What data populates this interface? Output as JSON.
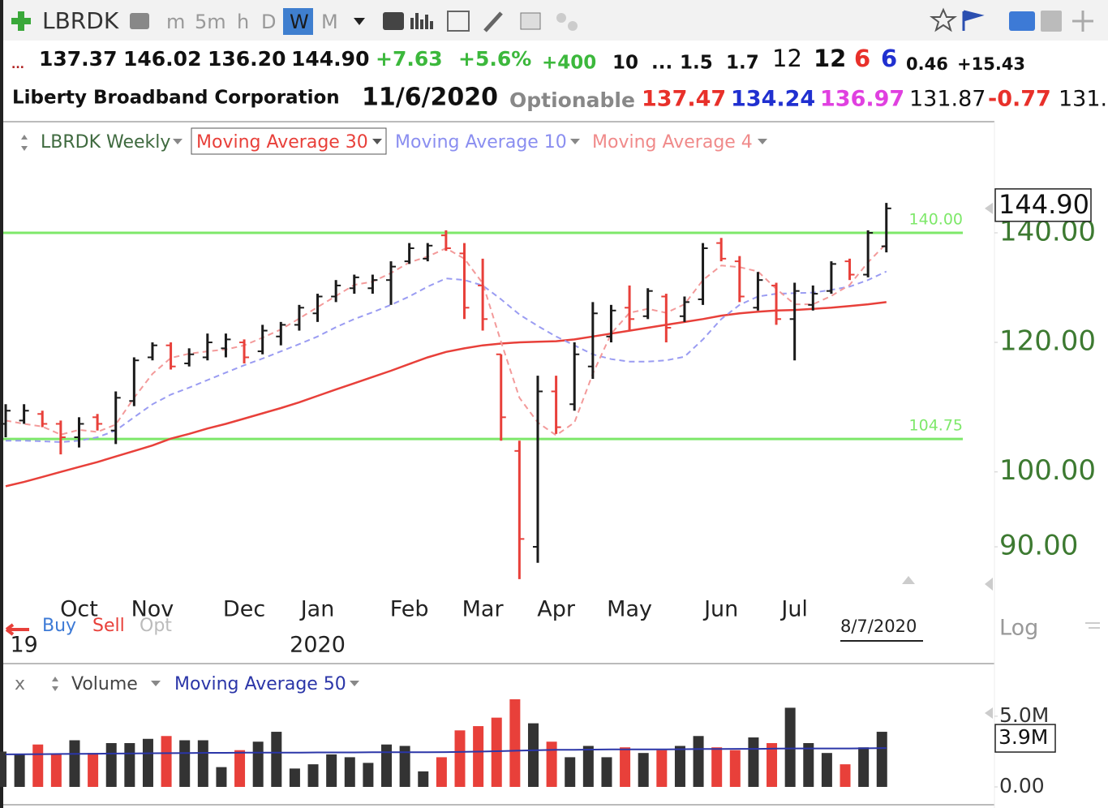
{
  "toolbar": {
    "symbol": "LBRDK",
    "intervals": [
      "m",
      "5m",
      "h",
      "D",
      "W",
      "M"
    ]
  },
  "quote": {
    "row1": [
      "...",
      "137.37",
      "146.02",
      "136.20",
      "144.90",
      "+7.63",
      "+5.6%",
      "+400",
      "10",
      "...",
      "1.5",
      "1.7",
      "12",
      "12",
      "6",
      "6",
      "0.46",
      "+15.43"
    ],
    "row2": [
      "Liberty Broadband Corporation",
      "11/6/2020",
      "Optionable",
      "137.47",
      "134.24",
      "136.97",
      "131.87",
      "-0.77",
      "131."
    ]
  },
  "trade_buttons": [
    "Buy",
    "Sell",
    "Opt"
  ],
  "scale_mode": "Log",
  "cursor_label": "8/7/2020",
  "close_button": "x",
  "chart_data": [
    {
      "type": "ohlc",
      "title": "LBRDK Weekly",
      "log_scale": true,
      "color_up": "#1a1a1a",
      "color_down": "#e8403a",
      "categories": [
        null,
        null,
        null,
        null,
        "Oct",
        null,
        null,
        null,
        "Nov",
        null,
        null,
        null,
        null,
        "Dec",
        null,
        null,
        null,
        "Jan",
        null,
        null,
        null,
        null,
        "Feb",
        null,
        null,
        null,
        "Mar",
        null,
        null,
        null,
        "Apr",
        null,
        null,
        null,
        "May",
        null,
        null,
        null,
        null,
        "Jun",
        null,
        null,
        null,
        "Jul",
        null,
        null,
        null,
        null,
        null
      ],
      "year_labels": [
        null,
        "19",
        null,
        null,
        null,
        null,
        null,
        null,
        null,
        null,
        null,
        null,
        null,
        null,
        null,
        null,
        null,
        "2020",
        null,
        null,
        null,
        null,
        null,
        null,
        null,
        null,
        null,
        null,
        null,
        null,
        null,
        null,
        null,
        null,
        null,
        null,
        null,
        null,
        null,
        null,
        null,
        null,
        null,
        null,
        null,
        null,
        null,
        null,
        null
      ],
      "open": [
        107,
        107.5,
        108.5,
        107,
        105,
        108,
        106,
        110.5,
        117.5,
        119.5,
        116.5,
        117.5,
        119,
        120,
        118.5,
        121,
        123,
        125,
        128,
        129.5,
        129.5,
        131,
        134.5,
        135,
        139.5,
        136,
        130,
        118,
        103,
        90,
        112,
        110,
        116,
        121,
        126,
        124.5,
        128,
        124.5,
        127.5,
        138,
        134.5,
        126,
        130,
        124,
        126.5,
        129,
        134.5,
        132,
        137.37
      ],
      "high": [
        110,
        110,
        109,
        107.5,
        108,
        108.5,
        112,
        117.5,
        120,
        120,
        119,
        121.5,
        121.5,
        120.5,
        123,
        123.5,
        126.5,
        128.5,
        131,
        132,
        132,
        134.5,
        138,
        138,
        140.5,
        138,
        135,
        118,
        104.5,
        114.5,
        114.5,
        120,
        127,
        126.5,
        130,
        129.5,
        128.5,
        128,
        138,
        139,
        135.5,
        132.5,
        130.5,
        130.5,
        130,
        134.5,
        135,
        140.5,
        146.02
      ],
      "low": [
        105,
        107,
        106.5,
        102.5,
        103.5,
        106,
        104,
        109.7,
        117,
        115.5,
        116,
        117,
        117.5,
        116.5,
        118,
        119.5,
        122,
        123.5,
        127,
        128.5,
        128.5,
        126.5,
        134,
        134.5,
        136.5,
        124,
        122,
        104.5,
        86,
        88,
        105.5,
        109,
        114,
        120,
        122,
        124,
        120,
        123.5,
        126.5,
        134.5,
        127,
        125.5,
        123,
        117,
        125.5,
        128.5,
        131,
        131.5,
        136.2
      ],
      "close": [
        109,
        109,
        107,
        105,
        107,
        107,
        111,
        117,
        119.5,
        116,
        118,
        120,
        120.5,
        117.5,
        122,
        123,
        126,
        128,
        130,
        131.5,
        131,
        133.5,
        137,
        137.5,
        137,
        126,
        124,
        108,
        91,
        112,
        106.5,
        118,
        125,
        125.5,
        124,
        129,
        122.5,
        127,
        137,
        135,
        128,
        131,
        124,
        129,
        128.5,
        134,
        132,
        140,
        144.9
      ],
      "series": [
        {
          "name": "Moving Average 30",
          "color": "#e8403a",
          "dashed": false,
          "values": [
            98.0,
            98.6,
            99.3,
            100.0,
            100.7,
            101.4,
            102.2,
            103.0,
            103.8,
            104.8,
            105.5,
            106.3,
            107.0,
            107.8,
            108.6,
            109.4,
            110.3,
            111.3,
            112.3,
            113.3,
            114.3,
            115.3,
            116.4,
            117.5,
            118.4,
            119.0,
            119.5,
            119.8,
            120.0,
            120.1,
            120.2,
            120.5,
            121.0,
            121.5,
            122.0,
            122.5,
            123.0,
            123.5,
            124.0,
            124.6,
            125.0,
            125.3,
            125.5,
            125.6,
            125.8,
            126.0,
            126.3,
            126.6,
            127.0
          ]
        },
        {
          "name": "Moving Average 10",
          "color": "#9a9cf2",
          "dashed": true,
          "values": [
            104.5,
            104.5,
            104.4,
            104.3,
            104.5,
            105.0,
            106.0,
            108.0,
            110.0,
            111.5,
            112.6,
            113.8,
            115.0,
            116.2,
            117.3,
            118.5,
            119.7,
            121.0,
            122.6,
            124.0,
            125.2,
            126.5,
            128.0,
            129.8,
            131.3,
            131.0,
            130.0,
            127.5,
            124.8,
            122.8,
            121.0,
            119.5,
            118.0,
            117.2,
            116.8,
            116.8,
            117.0,
            117.6,
            120.5,
            124.0,
            126.5,
            128.0,
            128.5,
            128.6,
            128.7,
            129.2,
            129.8,
            131.0,
            132.6
          ]
        },
        {
          "name": "Moving Average 4",
          "color": "#f39a9a",
          "dashed": true,
          "values": [
            107.5,
            107.0,
            106.6,
            105.4,
            106.1,
            105.8,
            106.9,
            111.0,
            114.8,
            117.4,
            118.1,
            118.5,
            118.8,
            119.5,
            120.8,
            122.2,
            124.1,
            126.1,
            128.1,
            130.1,
            130.7,
            132.3,
            134.3,
            135.4,
            137.0,
            135.0,
            130.4,
            120.1,
            111.0,
            107.2,
            105.3,
            107.2,
            114.8,
            121.5,
            125.1,
            125.8,
            125.1,
            126.6,
            131.0,
            133.7,
            133.4,
            132.6,
            129.4,
            126.6,
            126.6,
            128.1,
            130.1,
            134.3,
            137.9
          ]
        }
      ],
      "hlines": [
        {
          "value": 140,
          "label": "140.00",
          "color": "#7ee86a"
        },
        {
          "value": 104.75,
          "label": "104.75",
          "color": "#7ee86a"
        }
      ],
      "last_price": {
        "value": 144.9,
        "label": "144.90"
      },
      "ylim": [
        85.4,
        163.7
      ],
      "yticks": [
        {
          "value": 140,
          "label": "140.00"
        },
        {
          "value": 120,
          "label": "120.00"
        },
        {
          "value": 100,
          "label": "100.00"
        },
        {
          "value": 90,
          "label": "90.00"
        }
      ]
    },
    {
      "type": "volume",
      "title": "Volume",
      "values": [
        2500000,
        2300000,
        3000000,
        2300000,
        3300000,
        2400000,
        3100000,
        3100000,
        3400000,
        3600000,
        3300000,
        3300000,
        1400000,
        2600000,
        3200000,
        3900000,
        1300000,
        1600000,
        2300000,
        2100000,
        1700000,
        3000000,
        2900000,
        1100000,
        2100000,
        4000000,
        4300000,
        4900000,
        6200000,
        4500000,
        3200000,
        2100000,
        2900000,
        2100000,
        2800000,
        2400000,
        2600000,
        2900000,
        3600000,
        2800000,
        2600000,
        3500000,
        3100000,
        5600000,
        3100000,
        2400000,
        1600000,
        2800000,
        3900000
      ],
      "series": [
        {
          "name": "Moving Average 50",
          "color": "#2b36a8",
          "values": [
            2300000,
            2310000,
            2320000,
            2330000,
            2340000,
            2350000,
            2360000,
            2370000,
            2380000,
            2390000,
            2400000,
            2410000,
            2410000,
            2420000,
            2420000,
            2430000,
            2430000,
            2440000,
            2440000,
            2440000,
            2450000,
            2450000,
            2450000,
            2450000,
            2460000,
            2480000,
            2500000,
            2530000,
            2570000,
            2600000,
            2620000,
            2630000,
            2640000,
            2650000,
            2650000,
            2660000,
            2660000,
            2670000,
            2680000,
            2680000,
            2690000,
            2690000,
            2710000,
            2720000,
            2720000,
            2720000,
            2720000,
            2730000,
            2750000
          ]
        }
      ],
      "last_value": {
        "value": 3900000,
        "label": "3.9M"
      },
      "ylim": [
        0,
        6600000
      ],
      "yticks": [
        {
          "value": 0,
          "label": "0.00"
        },
        {
          "value": 5000000,
          "label": "5.0M"
        }
      ]
    }
  ]
}
